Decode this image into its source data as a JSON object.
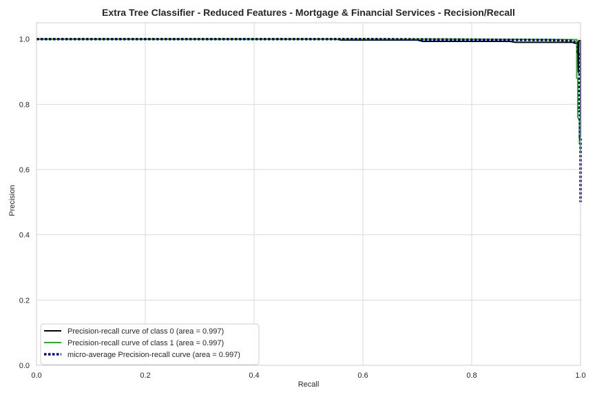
{
  "chart_data": {
    "type": "line",
    "title": "Extra Tree Classifier - Reduced Features - Mortgage & Financial Services - Recision/Recall",
    "xlabel": "Recall",
    "ylabel": "Precision",
    "xlim": [
      0.0,
      1.0
    ],
    "ylim": [
      0.0,
      1.05
    ],
    "x_ticks": [
      0.0,
      0.2,
      0.4,
      0.6,
      0.8,
      1.0
    ],
    "x_tick_labels": [
      "0.0",
      "0.2",
      "0.4",
      "0.6",
      "0.8",
      "1.0"
    ],
    "y_ticks": [
      0.0,
      0.2,
      0.4,
      0.6,
      0.8,
      1.0
    ],
    "y_tick_labels": [
      "0.0",
      "0.2",
      "0.4",
      "0.6",
      "0.8",
      "1.0"
    ],
    "grid": true,
    "legend_position": "lower-left",
    "series": [
      {
        "name": "Precision-recall curve of class 0 (area = 0.997)",
        "color": "#000000",
        "dash": "solid",
        "points": [
          [
            0.0,
            1.0
          ],
          [
            0.55,
            1.0
          ],
          [
            0.56,
            0.997
          ],
          [
            0.7,
            0.997
          ],
          [
            0.71,
            0.993
          ],
          [
            0.87,
            0.993
          ],
          [
            0.88,
            0.99
          ],
          [
            0.985,
            0.99
          ],
          [
            0.99,
            0.987
          ],
          [
            0.995,
            0.987
          ],
          [
            0.996,
            0.9
          ],
          [
            0.997,
            0.995
          ],
          [
            1.0,
            0.995
          ],
          [
            1.0,
            0.7
          ]
        ]
      },
      {
        "name": "Precision-recall curve of class 1 (area = 0.997)",
        "color": "#1db81d",
        "dash": "solid",
        "points": [
          [
            0.0,
            1.0
          ],
          [
            0.75,
            1.0
          ],
          [
            0.99,
            0.998
          ],
          [
            0.993,
            0.998
          ],
          [
            0.993,
            0.88
          ],
          [
            0.995,
            0.88
          ],
          [
            0.995,
            0.76
          ],
          [
            0.998,
            0.75
          ],
          [
            0.998,
            0.68
          ],
          [
            1.0,
            0.68
          ],
          [
            1.0,
            0.65
          ]
        ]
      },
      {
        "name": "micro-average Precision-recall curve (area = 0.997)",
        "color": "#00007a",
        "dash": "dotted",
        "points": [
          [
            0.0,
            1.0
          ],
          [
            0.6,
            1.0
          ],
          [
            0.95,
            0.997
          ],
          [
            0.985,
            0.995
          ],
          [
            0.99,
            0.99
          ],
          [
            0.995,
            0.99
          ],
          [
            0.995,
            0.96
          ],
          [
            0.997,
            0.96
          ],
          [
            0.997,
            0.9
          ],
          [
            0.998,
            0.9
          ],
          [
            0.998,
            0.78
          ],
          [
            0.999,
            0.78
          ],
          [
            0.999,
            0.7
          ],
          [
            1.0,
            0.7
          ],
          [
            1.0,
            0.5
          ]
        ]
      }
    ]
  }
}
